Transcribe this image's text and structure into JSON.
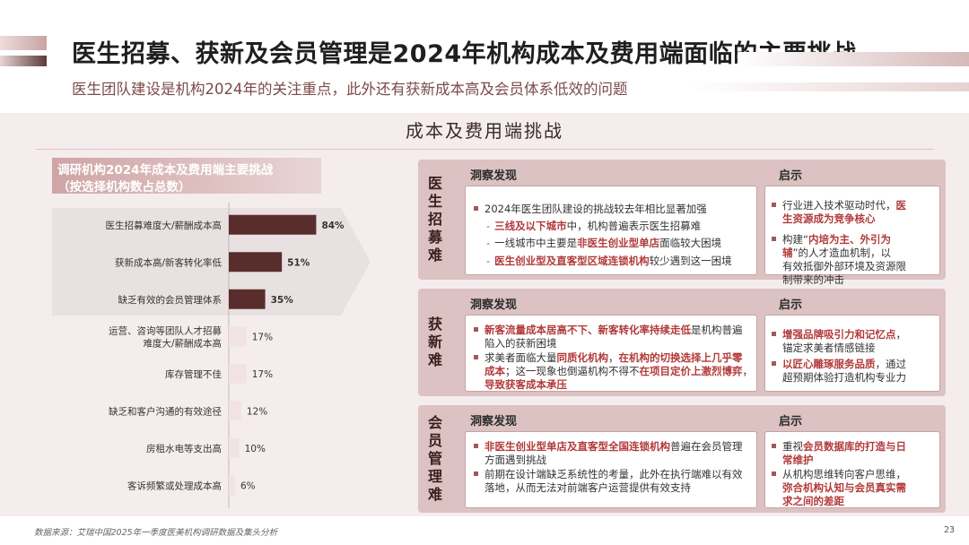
{
  "header": {
    "title": "医生招募、获新及会员管理是2024年机构成本及费用端面临的主要挑战",
    "subtitle": "医生团队建设是机构2024年的关注重点，此外还有获新成本高及会员体系低效的问题"
  },
  "section_title": "成本及费用端挑战",
  "chart_data": {
    "type": "bar",
    "title_line1": "调研机构2024年成本及费用端主要挑战",
    "title_line2": "（按选择机构数占总数）",
    "orientation": "horizontal",
    "categories": [
      "医生招募难度大/薪酬成本高",
      "获新成本高/新客转化率低",
      "缺乏有效的会员管理体系",
      "运营、咨询等团队人才招募难度大/薪酬成本高",
      "库存管理不佳",
      "缺乏和客户沟通的有效途径",
      "房租水电等支出高",
      "客诉频繁或处理成本高"
    ],
    "category_lines": [
      [
        "医生招募难度大/薪酬成本高"
      ],
      [
        "获新成本高/新客转化率低"
      ],
      [
        "缺乏有效的会员管理体系"
      ],
      [
        "运营、咨询等团队人才招募",
        "难度大/薪酬成本高"
      ],
      [
        "库存管理不佳"
      ],
      [
        "缺乏和客户沟通的有效途径"
      ],
      [
        "房租水电等支出高"
      ],
      [
        "客诉频繁或处理成本高"
      ]
    ],
    "values": [
      84,
      51,
      35,
      17,
      17,
      12,
      10,
      6
    ],
    "value_labels": [
      "84%",
      "51%",
      "35%",
      "17%",
      "17%",
      "12%",
      "10%",
      "6%"
    ],
    "highlight_top": 3,
    "colors": {
      "highlight": "#5a2d2d",
      "normal": "#f1e3e3"
    },
    "xlim": [
      0,
      100
    ]
  },
  "blocks": [
    {
      "tag": [
        "医",
        "生",
        "招",
        "募",
        "难"
      ],
      "insight_header": "洞察发现",
      "advice_header": "启示",
      "insights": [
        {
          "type": "bullet",
          "segs": [
            {
              "t": "2024年医生团队建设的挑战较去年相比显著加强",
              "hl": false
            }
          ]
        },
        {
          "type": "dash",
          "segs": [
            {
              "t": "三线及以下城市",
              "hl": true
            },
            {
              "t": "中，机构普遍表示医生招募难",
              "hl": false
            }
          ]
        },
        {
          "type": "dash",
          "segs": [
            {
              "t": "一线城市中主要是",
              "hl": false
            },
            {
              "t": "非医生创业型单店",
              "hl": true
            },
            {
              "t": "面临较大困境",
              "hl": false
            }
          ]
        },
        {
          "type": "dash",
          "segs": [
            {
              "t": "医生创业型及直客型区域连锁机构",
              "hl": true
            },
            {
              "t": "较少遇到这一困境",
              "hl": false
            }
          ]
        }
      ],
      "advice": [
        {
          "lines": [
            [
              {
                "t": "行业进入技术驱动时代，",
                "hl": false
              },
              {
                "t": "医",
                "hl": true
              }
            ],
            [
              {
                "t": "生资源成为竞争核心",
                "hl": true
              }
            ]
          ]
        },
        {
          "lines": [
            [
              {
                "t": "构建“",
                "hl": false
              },
              {
                "t": "内培为主、外引为",
                "hl": true
              }
            ],
            [
              {
                "t": "辅",
                "hl": true
              },
              {
                "t": "”的人才造血机制，以",
                "hl": false
              }
            ],
            [
              {
                "t": "有效抵御外部环境及资源限",
                "hl": false
              }
            ],
            [
              {
                "t": "制带来的冲击",
                "hl": false
              }
            ]
          ]
        }
      ]
    },
    {
      "tag": [
        "获",
        "新",
        "难"
      ],
      "insight_header": "洞察发现",
      "advice_header": "启示",
      "insights": [
        {
          "lines": [
            [
              {
                "t": "新客流量成本居高不下、新客转化率持续走低",
                "hl": true
              },
              {
                "t": "是机构普遍",
                "hl": false
              }
            ],
            [
              {
                "t": "陷入的获新困境",
                "hl": false
              }
            ]
          ]
        },
        {
          "lines": [
            [
              {
                "t": "求美者面临大量",
                "hl": false
              },
              {
                "t": "同质化机构",
                "hl": true
              },
              {
                "t": "，",
                "hl": false
              },
              {
                "t": "在机构的切换选择上几乎零",
                "hl": true
              }
            ],
            [
              {
                "t": "成本",
                "hl": true
              },
              {
                "t": "；这一现象也倒逼机构不得不",
                "hl": false
              },
              {
                "t": "在项目定价上激烈博弈",
                "hl": true
              },
              {
                "t": "，",
                "hl": false
              }
            ],
            [
              {
                "t": "导致获客成本承压",
                "hl": true
              }
            ]
          ]
        }
      ],
      "advice": [
        {
          "lines": [
            [
              {
                "t": "增强品牌吸引力和记忆点",
                "hl": true
              },
              {
                "t": "，",
                "hl": false
              }
            ],
            [
              {
                "t": "锚定求美者情感链接",
                "hl": false
              }
            ]
          ]
        },
        {
          "lines": [
            [
              {
                "t": "以匠心雕琢服务品质",
                "hl": true
              },
              {
                "t": "，通过",
                "hl": false
              }
            ],
            [
              {
                "t": "超预期体验打造机构专业力",
                "hl": false
              }
            ]
          ]
        }
      ]
    },
    {
      "tag": [
        "会",
        "员",
        "管",
        "理",
        "难"
      ],
      "insight_header": "洞察发现",
      "advice_header": "启示",
      "insights": [
        {
          "lines": [
            [
              {
                "t": "非医生创业型单店及直客型全国连锁机构",
                "hl": true
              },
              {
                "t": "普遍在会员管理",
                "hl": false
              }
            ],
            [
              {
                "t": "方面遇到挑战",
                "hl": false
              }
            ]
          ]
        },
        {
          "lines": [
            [
              {
                "t": "前期在设计端缺乏系统性的考量，此外在执行端难以有效",
                "hl": false
              }
            ],
            [
              {
                "t": "落地，从而无法对前端客户运营提供有效支持",
                "hl": false
              }
            ]
          ]
        }
      ],
      "advice": [
        {
          "lines": [
            [
              {
                "t": "重视",
                "hl": false
              },
              {
                "t": "会员数据库的打造与日",
                "hl": true
              }
            ],
            [
              {
                "t": "常维护",
                "hl": true
              }
            ]
          ]
        },
        {
          "lines": [
            [
              {
                "t": "从机构思维转向客户思维，",
                "hl": false
              }
            ],
            [
              {
                "t": "弥合机构认知与会员真实需",
                "hl": true
              }
            ],
            [
              {
                "t": "求之间的差距",
                "hl": true
              }
            ]
          ]
        }
      ]
    }
  ],
  "footer": {
    "source": "数据来源：艾瑞中国2025年一季度医美机构调研数据及集头分析",
    "page": "23"
  }
}
